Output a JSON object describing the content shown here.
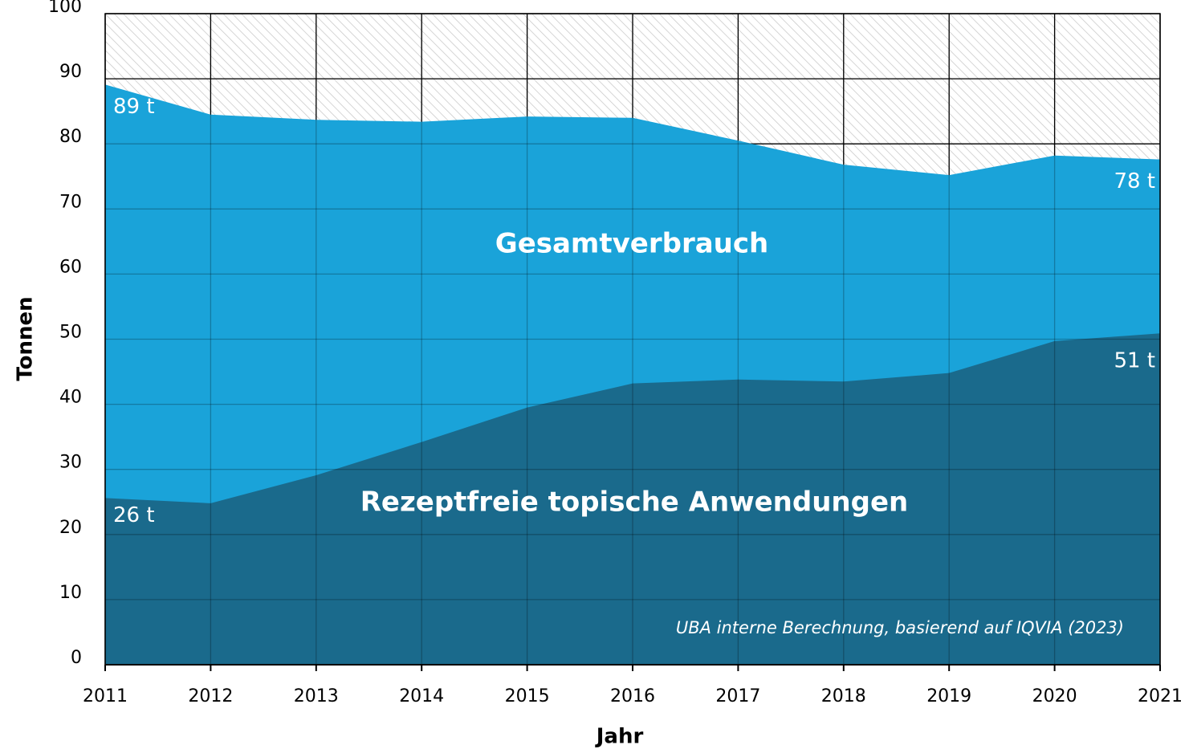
{
  "chart_data": {
    "type": "area",
    "xlabel": "Jahr",
    "ylabel": "Tonnen",
    "annotation": "UBA interne Berechnung, basierend auf IQVIA (2023)",
    "x": [
      2011,
      2012,
      2013,
      2014,
      2015,
      2016,
      2017,
      2018,
      2019,
      2020,
      2021
    ],
    "series": [
      {
        "name": "Gesamtverbrauch",
        "color": "#1aa3d9",
        "values": [
          89.1,
          84.5,
          83.7,
          83.4,
          84.2,
          84.0,
          80.5,
          76.8,
          75.2,
          78.2,
          77.6
        ],
        "value_labels": [
          "89 t",
          null,
          null,
          null,
          null,
          null,
          null,
          null,
          null,
          null,
          "78 t"
        ]
      },
      {
        "name": "Rezeptfreie topische Anwendungen",
        "color": "#1a6a8c",
        "values": [
          25.6,
          24.8,
          29.1,
          34.2,
          39.5,
          43.2,
          43.8,
          43.5,
          44.8,
          49.7,
          50.9
        ],
        "value_labels": [
          "26 t",
          null,
          null,
          null,
          null,
          null,
          null,
          null,
          null,
          null,
          "51 t"
        ]
      }
    ],
    "xlim": [
      2011,
      2021
    ],
    "xticks": [
      2011,
      2012,
      2013,
      2014,
      2015,
      2016,
      2017,
      2018,
      2019,
      2020,
      2021
    ],
    "ylim": [
      0,
      100
    ],
    "yticks": [
      0,
      10,
      20,
      30,
      40,
      50,
      60,
      70,
      80,
      90,
      100
    ],
    "grid": true
  }
}
